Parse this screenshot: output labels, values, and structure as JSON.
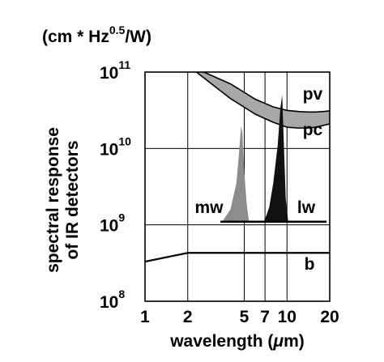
{
  "chart_data": {
    "type": "line",
    "unit_label": "(cm * Hz^0.5/W)",
    "unit_parts": {
      "pre": "(cm * Hz",
      "exp": "0.5",
      "post": "/W)"
    },
    "ylabel_line1": "spectral response",
    "ylabel_line2": "of IR detectors",
    "xlabel_pre": "wavelength (",
    "xlabel_mu": "μ",
    "xlabel_post": "m)",
    "x_scale": "log",
    "y_scale": "log",
    "xlim": [
      1,
      20
    ],
    "ylim": [
      100000000,
      100000000000
    ],
    "x_ticks": [
      1,
      2,
      5,
      7,
      10,
      20
    ],
    "x_tick_labels": [
      "1",
      "2",
      "5",
      "7",
      "10",
      "20"
    ],
    "y_ticks": [
      100000000,
      1000000000,
      10000000000,
      100000000000
    ],
    "y_tick_labels": [
      {
        "base": "10",
        "exp": "8"
      },
      {
        "base": "10",
        "exp": "9"
      },
      {
        "base": "10",
        "exp": "10"
      },
      {
        "base": "10",
        "exp": "11"
      }
    ],
    "grid": true,
    "series": [
      {
        "name": "pv",
        "kind": "band-upper",
        "x": [
          2.6,
          4,
          6,
          8,
          10,
          12,
          14,
          16,
          18,
          20
        ],
        "y": [
          100000000000,
          70000000000,
          44000000000,
          35000000000,
          31500000000,
          30500000000,
          30000000000,
          30000000000,
          30500000000,
          31000000000
        ]
      },
      {
        "name": "pc",
        "kind": "band-lower",
        "x": [
          2.3,
          4,
          6,
          8,
          10,
          12,
          14,
          16,
          18,
          20
        ],
        "y": [
          100000000000,
          45000000000,
          28000000000,
          22000000000,
          19000000000,
          18500000000,
          18500000000,
          19000000000,
          20000000000,
          21000000000
        ]
      },
      {
        "name": "mw",
        "kind": "peak",
        "color": "#8c8c8c",
        "x": [
          3.5,
          4.0,
          4.4,
          4.6,
          4.75,
          4.85,
          5.0,
          5.2,
          5.4
        ],
        "y": [
          1100000000,
          1600000000,
          3500000000,
          9000000000,
          20000000000,
          16000000000,
          5000000000,
          1900000000,
          1100000000
        ]
      },
      {
        "name": "lw",
        "kind": "peak",
        "color": "#111111",
        "x": [
          6.9,
          7.5,
          8.0,
          8.6,
          9.0,
          9.25,
          9.5,
          9.8,
          10.2
        ],
        "y": [
          1100000000,
          1700000000,
          3500000000,
          11000000000,
          35000000000,
          50000000000,
          12000000000,
          2200000000,
          1100000000
        ]
      },
      {
        "name": "b",
        "kind": "line",
        "x": [
          1,
          2,
          20
        ],
        "y": [
          330000000,
          430000000,
          430000000
        ]
      }
    ],
    "baseline": {
      "x": [
        3.4,
        19
      ],
      "y": 1100000000
    }
  }
}
